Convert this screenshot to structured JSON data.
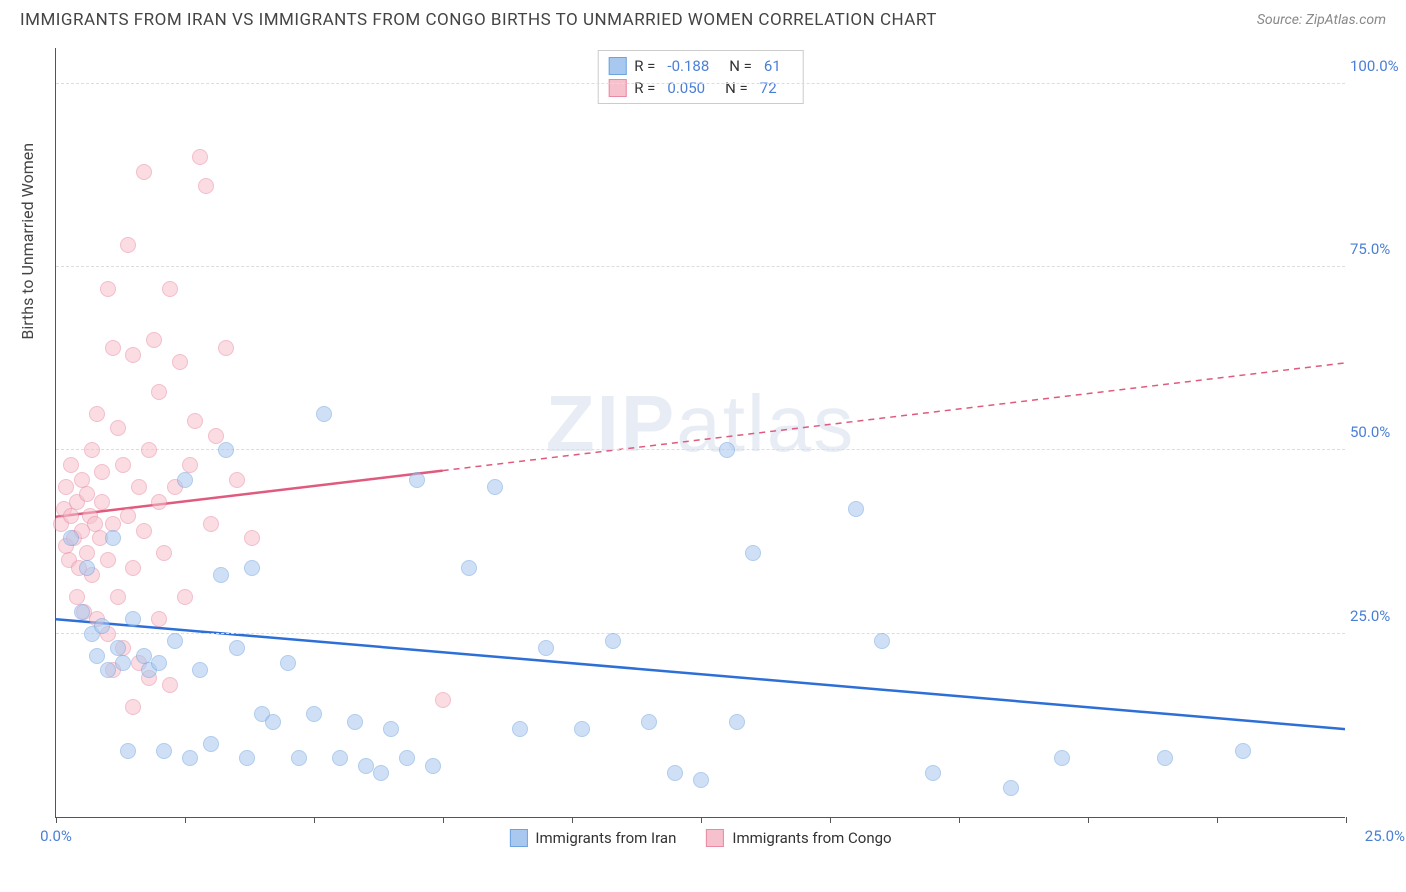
{
  "title": "IMMIGRANTS FROM IRAN VS IMMIGRANTS FROM CONGO BIRTHS TO UNMARRIED WOMEN CORRELATION CHART",
  "source": "Source: ZipAtlas.com",
  "watermark": {
    "part1": "ZIP",
    "part2": "atlas"
  },
  "y_axis_label": "Births to Unmarried Women",
  "chart": {
    "type": "scatter",
    "xlim": [
      0,
      25
    ],
    "ylim": [
      0,
      105
    ],
    "y_ticks": [
      25,
      50,
      75,
      100
    ],
    "y_tick_labels": [
      "25.0%",
      "50.0%",
      "75.0%",
      "100.0%"
    ],
    "x_tick_positions": [
      0,
      2.5,
      5,
      7.5,
      10,
      12.5,
      15,
      17.5,
      20,
      22.5,
      25
    ],
    "x_start_label": "0.0%",
    "x_end_label": "25.0%",
    "background_color": "#ffffff",
    "grid_color": "#dddddd",
    "axis_color": "#555555",
    "label_color": "#4a7fd6",
    "point_radius": 8,
    "point_opacity": 0.55,
    "series": [
      {
        "name": "Immigrants from Iran",
        "fill": "#a8c8f0",
        "stroke": "#6fa3e0",
        "line_color": "#2d6fd6",
        "R": "-0.188",
        "N": "61",
        "trend": {
          "x1": 0,
          "y1": 27,
          "x2": 25,
          "y2": 12,
          "solid_until_x": 25
        },
        "points": [
          [
            0.3,
            38
          ],
          [
            0.5,
            28
          ],
          [
            0.6,
            34
          ],
          [
            0.7,
            25
          ],
          [
            0.8,
            22
          ],
          [
            0.9,
            26
          ],
          [
            1.0,
            20
          ],
          [
            1.1,
            38
          ],
          [
            1.2,
            23
          ],
          [
            1.3,
            21
          ],
          [
            1.4,
            9
          ],
          [
            1.5,
            27
          ],
          [
            1.7,
            22
          ],
          [
            1.8,
            20
          ],
          [
            2.0,
            21
          ],
          [
            2.1,
            9
          ],
          [
            2.3,
            24
          ],
          [
            2.5,
            46
          ],
          [
            2.6,
            8
          ],
          [
            2.8,
            20
          ],
          [
            3.0,
            10
          ],
          [
            3.2,
            33
          ],
          [
            3.3,
            50
          ],
          [
            3.5,
            23
          ],
          [
            3.7,
            8
          ],
          [
            3.8,
            34
          ],
          [
            4.0,
            14
          ],
          [
            4.2,
            13
          ],
          [
            4.5,
            21
          ],
          [
            4.7,
            8
          ],
          [
            5.0,
            14
          ],
          [
            5.2,
            55
          ],
          [
            5.5,
            8
          ],
          [
            5.8,
            13
          ],
          [
            6.0,
            7
          ],
          [
            6.3,
            6
          ],
          [
            6.5,
            12
          ],
          [
            6.8,
            8
          ],
          [
            7.0,
            46
          ],
          [
            7.3,
            7
          ],
          [
            8.0,
            34
          ],
          [
            8.5,
            45
          ],
          [
            9.0,
            12
          ],
          [
            9.5,
            23
          ],
          [
            10.2,
            12
          ],
          [
            10.8,
            24
          ],
          [
            11.5,
            13
          ],
          [
            12.0,
            6
          ],
          [
            12.5,
            5
          ],
          [
            13.0,
            50
          ],
          [
            13.2,
            13
          ],
          [
            13.5,
            36
          ],
          [
            15.5,
            42
          ],
          [
            16.0,
            24
          ],
          [
            17.0,
            6
          ],
          [
            18.5,
            4
          ],
          [
            19.5,
            8
          ],
          [
            21.5,
            8
          ],
          [
            23.0,
            9
          ]
        ]
      },
      {
        "name": "Immigrants from Congo",
        "fill": "#f6c0cc",
        "stroke": "#e88aa3",
        "line_color": "#e05a7d",
        "R": "0.050",
        "N": "72",
        "trend": {
          "x1": 0,
          "y1": 41,
          "x2": 25,
          "y2": 62,
          "solid_until_x": 7.5
        },
        "points": [
          [
            0.1,
            40
          ],
          [
            0.15,
            42
          ],
          [
            0.2,
            37
          ],
          [
            0.2,
            45
          ],
          [
            0.25,
            35
          ],
          [
            0.3,
            41
          ],
          [
            0.3,
            48
          ],
          [
            0.35,
            38
          ],
          [
            0.4,
            30
          ],
          [
            0.4,
            43
          ],
          [
            0.45,
            34
          ],
          [
            0.5,
            46
          ],
          [
            0.5,
            39
          ],
          [
            0.55,
            28
          ],
          [
            0.6,
            44
          ],
          [
            0.6,
            36
          ],
          [
            0.65,
            41
          ],
          [
            0.7,
            50
          ],
          [
            0.7,
            33
          ],
          [
            0.75,
            40
          ],
          [
            0.8,
            55
          ],
          [
            0.8,
            27
          ],
          [
            0.85,
            38
          ],
          [
            0.9,
            47
          ],
          [
            0.9,
            43
          ],
          [
            1.0,
            72
          ],
          [
            1.0,
            35
          ],
          [
            1.0,
            25
          ],
          [
            1.1,
            64
          ],
          [
            1.1,
            40
          ],
          [
            1.1,
            20
          ],
          [
            1.2,
            30
          ],
          [
            1.2,
            53
          ],
          [
            1.3,
            48
          ],
          [
            1.3,
            23
          ],
          [
            1.4,
            41
          ],
          [
            1.4,
            78
          ],
          [
            1.5,
            63
          ],
          [
            1.5,
            34
          ],
          [
            1.5,
            15
          ],
          [
            1.6,
            45
          ],
          [
            1.6,
            21
          ],
          [
            1.7,
            39
          ],
          [
            1.7,
            88
          ],
          [
            1.8,
            50
          ],
          [
            1.8,
            19
          ],
          [
            1.9,
            65
          ],
          [
            2.0,
            43
          ],
          [
            2.0,
            27
          ],
          [
            2.0,
            58
          ],
          [
            2.1,
            36
          ],
          [
            2.2,
            72
          ],
          [
            2.2,
            18
          ],
          [
            2.3,
            45
          ],
          [
            2.4,
            62
          ],
          [
            2.5,
            30
          ],
          [
            2.6,
            48
          ],
          [
            2.7,
            54
          ],
          [
            2.8,
            90
          ],
          [
            2.9,
            86
          ],
          [
            3.0,
            40
          ],
          [
            3.1,
            52
          ],
          [
            3.3,
            64
          ],
          [
            3.5,
            46
          ],
          [
            3.8,
            38
          ],
          [
            7.5,
            16
          ]
        ]
      }
    ]
  },
  "legend_top": {
    "r_label": "R =",
    "n_label": "N ="
  },
  "legend_bottom": {
    "items": [
      "Immigrants from Iran",
      "Immigrants from Congo"
    ]
  }
}
